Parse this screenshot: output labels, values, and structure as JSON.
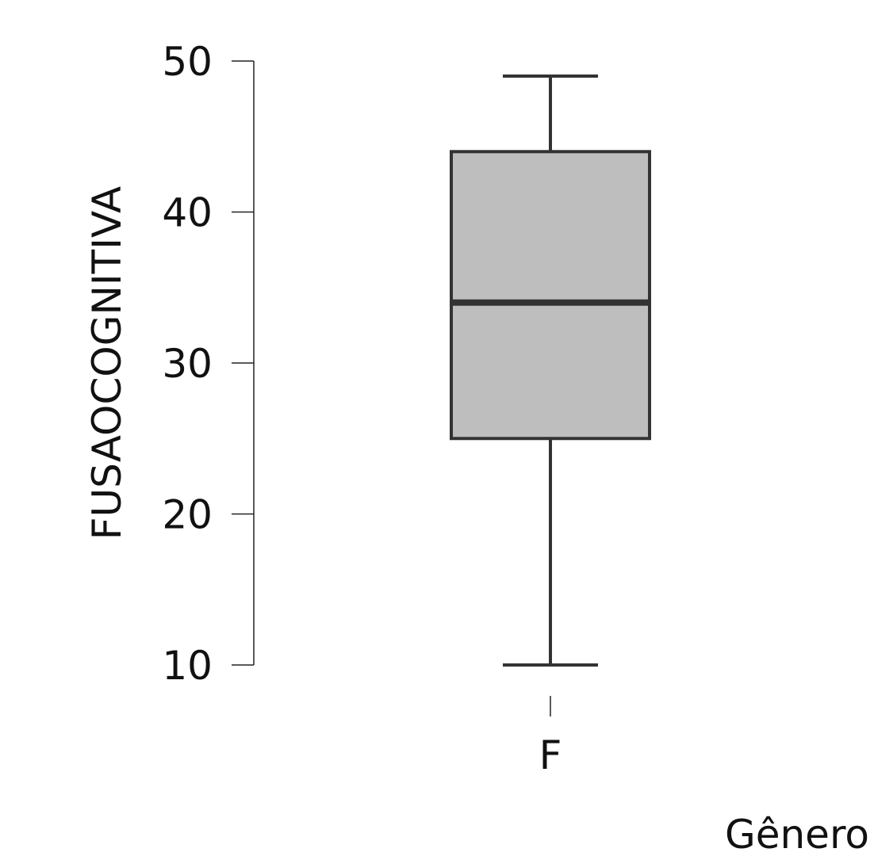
{
  "chart_data": {
    "type": "box",
    "title": "",
    "xlabel": "Gênero",
    "ylabel": "FUSAOCOGNITIVA",
    "ylim": [
      10,
      50
    ],
    "yticks": [
      10,
      20,
      30,
      40,
      50
    ],
    "grid": false,
    "categories": [
      "F"
    ],
    "boxes": [
      {
        "category": "F",
        "min": 10,
        "q1": 25,
        "median": 34,
        "q3": 44,
        "max": 49
      }
    ],
    "box_fill": "#bebebe",
    "line_color": "#333333"
  }
}
